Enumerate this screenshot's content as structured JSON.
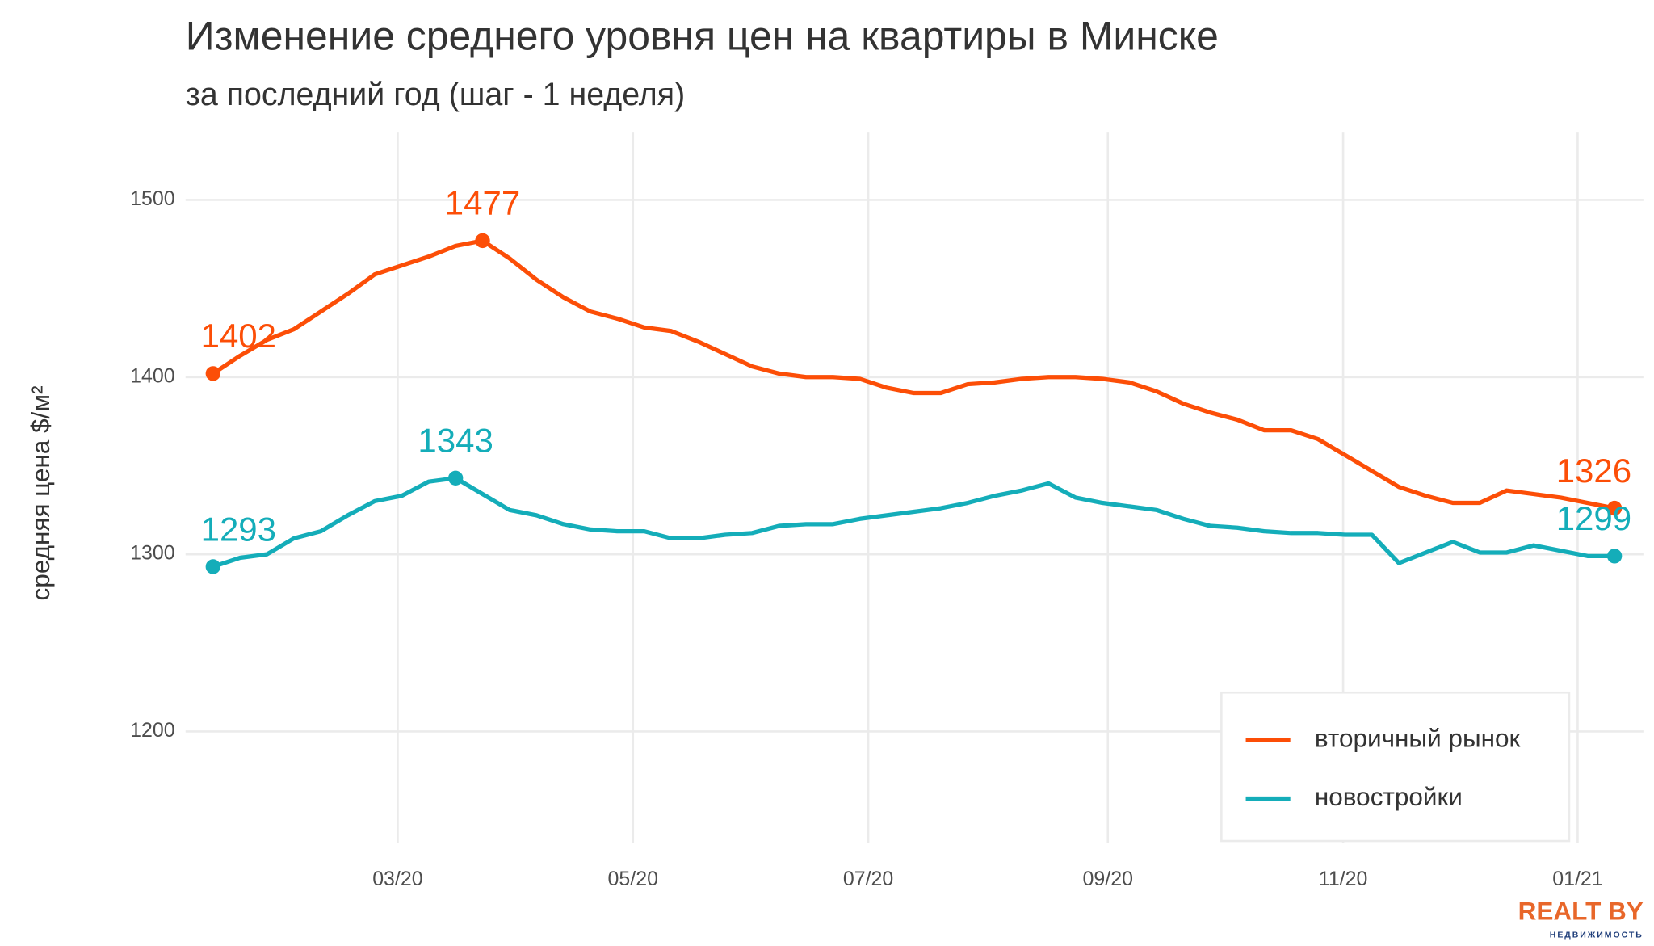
{
  "chart_data": {
    "type": "line",
    "title": "Изменение среднего уровня цен на квартиры в Минске",
    "subtitle": "за последний год (шаг - 1 неделя)",
    "y_label": "средняя цена $/м²",
    "xlim": [
      -1.02,
      53.07
    ],
    "xticks": [
      {
        "value": 6.85,
        "label": "03/20"
      },
      {
        "value": 15.58,
        "label": "05/20"
      },
      {
        "value": 24.31,
        "label": "07/20"
      },
      {
        "value": 33.2,
        "label": "09/20"
      },
      {
        "value": 41.93,
        "label": "11/20"
      },
      {
        "value": 50.63,
        "label": "01/21"
      }
    ],
    "ylim": [
      1137,
      1538
    ],
    "yticks": [
      1200,
      1300,
      1400,
      1500
    ],
    "grid": true,
    "legend": "bottom-right",
    "series": [
      {
        "name": "вторичный рынок",
        "color": "#fc4e07",
        "values": [
          1402,
          1412,
          1421,
          1427,
          1437,
          1447,
          1458,
          1463,
          1468,
          1474,
          1477,
          1467,
          1455,
          1445,
          1437,
          1433,
          1428,
          1426,
          1420,
          1413,
          1406,
          1402,
          1400,
          1400,
          1399,
          1394,
          1391,
          1391,
          1396,
          1397,
          1399,
          1400,
          1400,
          1399,
          1397,
          1392,
          1385,
          1380,
          1376,
          1370,
          1370,
          1365,
          1356,
          1347,
          1338,
          1333,
          1329,
          1329,
          1336,
          1334,
          1332,
          1329,
          1326
        ]
      },
      {
        "name": "новостройки",
        "color": "#14adb9",
        "values": [
          1293,
          1298,
          1300,
          1309,
          1313,
          1322,
          1330,
          1333,
          1341,
          1343,
          1334,
          1325,
          1322,
          1317,
          1314,
          1313,
          1313,
          1309,
          1309,
          1311,
          1312,
          1316,
          1317,
          1317,
          1320,
          1322,
          1324,
          1326,
          1329,
          1333,
          1336,
          1340,
          1332,
          1329,
          1327,
          1325,
          1320,
          1316,
          1315,
          1313,
          1312,
          1312,
          1311,
          1311,
          1295,
          1301,
          1307,
          1301,
          1301,
          1305,
          1302,
          1299,
          1299
        ]
      }
    ]
  },
  "logo": {
    "name": "REALT BY",
    "tagline": "НЕДВИЖИМОСТЬ"
  }
}
